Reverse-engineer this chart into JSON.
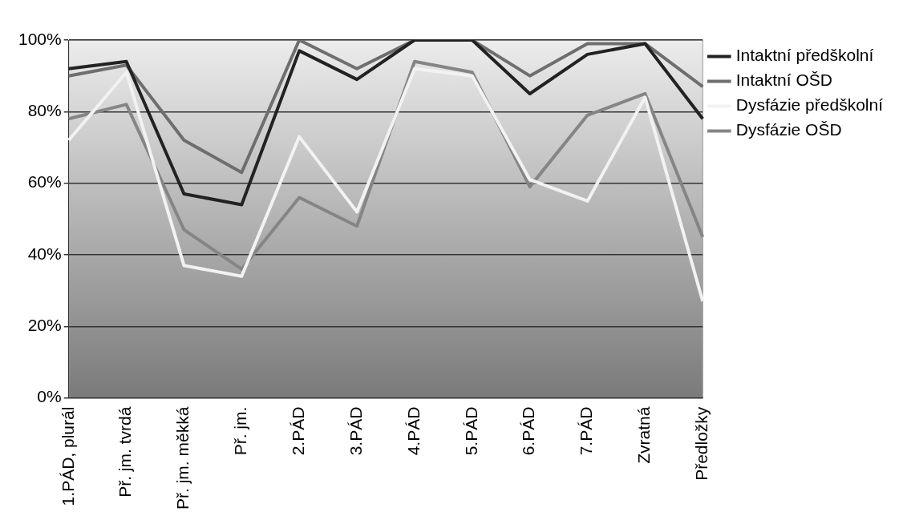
{
  "chart_data": {
    "type": "line",
    "categories": [
      "1.PÁD, plurál",
      "Př. jm. tvrdá",
      "Př. jm. měkká",
      "Př. jm.",
      "2.PÁD",
      "3.PÁD",
      "4.PÁD",
      "5.PÁD",
      "6.PÁD",
      "7.PÁD",
      "Zvratná",
      "Předložky"
    ],
    "series": [
      {
        "name": "Intaktní předškolní",
        "color": "#222222",
        "values": [
          92,
          94,
          57,
          54,
          97,
          89,
          100,
          100,
          85,
          96,
          99,
          78
        ]
      },
      {
        "name": "Intaktní OŠD",
        "color": "#6e6e6e",
        "values": [
          90,
          93,
          72,
          63,
          100,
          92,
          100,
          100,
          90,
          99,
          99,
          87
        ]
      },
      {
        "name": "Dysfázie předškolní",
        "color": "#f2f2f2",
        "values": [
          72,
          91,
          37,
          34,
          73,
          52,
          92,
          90,
          61,
          55,
          84,
          27
        ]
      },
      {
        "name": "Dysfázie OŠD",
        "color": "#858585",
        "values": [
          78,
          82,
          47,
          36,
          56,
          48,
          94,
          91,
          59,
          79,
          85,
          45
        ]
      }
    ],
    "ylim": [
      0,
      100
    ],
    "yticks": [
      {
        "value": 0,
        "label": "0%"
      },
      {
        "value": 20,
        "label": "20%"
      },
      {
        "value": 40,
        "label": "40%"
      },
      {
        "value": 60,
        "label": "60%"
      },
      {
        "value": 80,
        "label": "80%"
      },
      {
        "value": 100,
        "label": "100%"
      }
    ],
    "grid": "y",
    "legend": "top right",
    "marker": "none",
    "line_style": "solid"
  }
}
